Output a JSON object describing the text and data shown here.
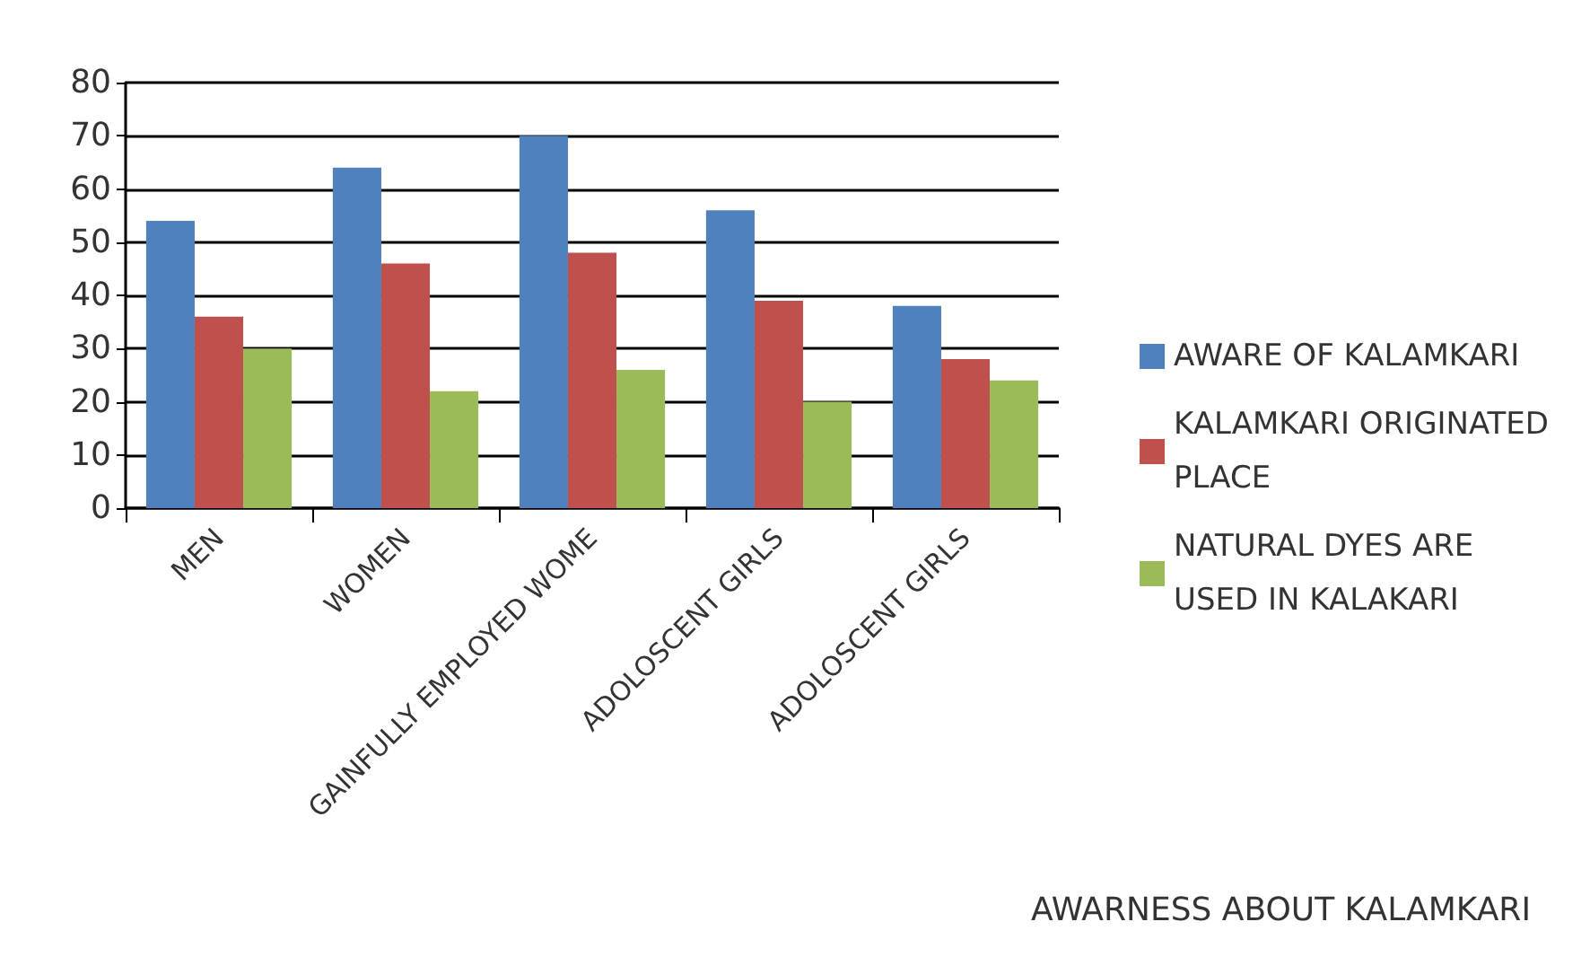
{
  "chart_data": {
    "type": "bar",
    "title": "AWARNESS ABOUT KALAMKARI",
    "categories": [
      "MEN",
      "WOMEN",
      "GAINFULLY EMPLOYED WOME",
      "ADOLOSCENT GIRLS",
      "ADOLOSCENT GIRLS"
    ],
    "series": [
      {
        "name": "AWARE OF KALAMKARI",
        "color": "#4f81bd",
        "values": [
          54,
          64,
          70,
          56,
          38
        ]
      },
      {
        "name": "KALAMKARI ORIGINATED PLACE",
        "color": "#c0504d",
        "values": [
          36,
          46,
          48,
          39,
          28
        ]
      },
      {
        "name": "NATURAL DYES ARE USED IN KALAKARI",
        "color": "#9bbb59",
        "values": [
          30,
          22,
          26,
          20,
          24
        ]
      }
    ],
    "ylim": [
      0,
      80
    ],
    "yticks": [
      0,
      10,
      20,
      30,
      40,
      50,
      60,
      70,
      80
    ],
    "grid": "y",
    "legend": "right"
  }
}
